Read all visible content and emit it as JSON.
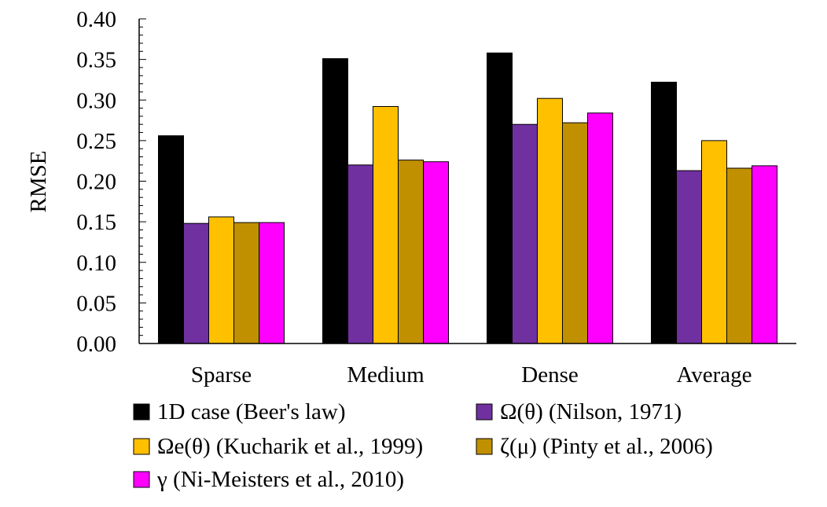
{
  "chart_data": {
    "type": "bar",
    "ylabel": "RMSE",
    "xlabel": "",
    "ylim": [
      0,
      0.4
    ],
    "y_ticks": [
      "0.00",
      "0.05",
      "0.10",
      "0.15",
      "0.20",
      "0.25",
      "0.30",
      "0.35",
      "0.40"
    ],
    "categories": [
      "Sparse",
      "Medium",
      "Dense",
      "Average"
    ],
    "grid": false,
    "legend_position": "bottom",
    "series": [
      {
        "name": "1D case (Beer's law)",
        "color": "#000000",
        "values": [
          0.256,
          0.351,
          0.358,
          0.322
        ]
      },
      {
        "name": "Ω(θ) (Nilson, 1971)",
        "color": "#7030A0",
        "values": [
          0.148,
          0.22,
          0.27,
          0.213
        ]
      },
      {
        "name": "Ωe(θ) (Kucharik et al., 1999)",
        "color": "#FFC000",
        "values": [
          0.156,
          0.292,
          0.302,
          0.25
        ]
      },
      {
        "name": "ζ(μ) (Pinty et al., 2006)",
        "color": "#C09000",
        "values": [
          0.149,
          0.226,
          0.272,
          0.216
        ]
      },
      {
        "name": "γ (Ni-Meisters et al., 2010)",
        "color": "#FF00FF",
        "values": [
          0.149,
          0.224,
          0.284,
          0.219
        ]
      }
    ]
  }
}
